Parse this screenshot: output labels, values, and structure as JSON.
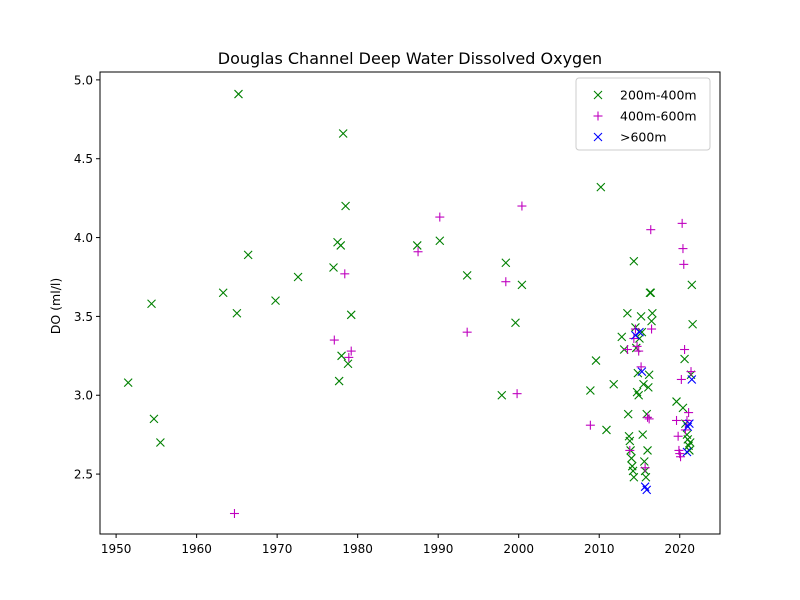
{
  "chart_data": {
    "type": "scatter",
    "title": "Douglas Channel Deep Water Dissolved Oxygen",
    "xlabel": "",
    "ylabel": "DO (ml/l)",
    "xlim": [
      1948,
      2025
    ],
    "ylim": [
      2.12,
      5.05
    ],
    "xticks": [
      "1950",
      "1960",
      "1970",
      "1980",
      "1990",
      "2000",
      "2010",
      "2020"
    ],
    "yticks": [
      "2.5",
      "3.0",
      "3.5",
      "4.0",
      "4.5",
      "5.0"
    ],
    "grid": false,
    "legend_position": "top-right",
    "series": [
      {
        "name": "200m-400m",
        "marker": "x",
        "color": "#008000",
        "points": [
          [
            1951.5,
            3.08
          ],
          [
            1954.4,
            3.58
          ],
          [
            1954.7,
            2.85
          ],
          [
            1955.5,
            2.7
          ],
          [
            1963.3,
            3.65
          ],
          [
            1965.0,
            3.52
          ],
          [
            1965.2,
            4.91
          ],
          [
            1966.4,
            3.89
          ],
          [
            1969.8,
            3.6
          ],
          [
            1972.6,
            3.75
          ],
          [
            1977.0,
            3.81
          ],
          [
            1977.5,
            3.97
          ],
          [
            1977.7,
            3.09
          ],
          [
            1977.9,
            3.95
          ],
          [
            1978.0,
            3.25
          ],
          [
            1978.2,
            4.66
          ],
          [
            1978.5,
            4.2
          ],
          [
            1978.8,
            3.2
          ],
          [
            1979.2,
            3.51
          ],
          [
            1987.4,
            3.95
          ],
          [
            1990.2,
            3.98
          ],
          [
            1993.6,
            3.76
          ],
          [
            1997.9,
            3.0
          ],
          [
            1998.4,
            3.84
          ],
          [
            1999.6,
            3.46
          ],
          [
            2000.4,
            3.7
          ],
          [
            2008.9,
            3.03
          ],
          [
            2009.6,
            3.22
          ],
          [
            2010.2,
            4.32
          ],
          [
            2010.9,
            2.78
          ],
          [
            2011.8,
            3.07
          ],
          [
            2012.8,
            3.37
          ],
          [
            2013.1,
            3.29
          ],
          [
            2013.5,
            3.52
          ],
          [
            2013.6,
            2.88
          ],
          [
            2013.7,
            2.74
          ],
          [
            2013.8,
            2.71
          ],
          [
            2013.9,
            2.65
          ],
          [
            2014.0,
            2.6
          ],
          [
            2014.1,
            2.55
          ],
          [
            2014.2,
            2.52
          ],
          [
            2014.3,
            2.48
          ],
          [
            2014.3,
            3.85
          ],
          [
            2014.5,
            3.43
          ],
          [
            2014.6,
            3.3
          ],
          [
            2014.7,
            3.02
          ],
          [
            2014.8,
            3.14
          ],
          [
            2014.9,
            3.0
          ],
          [
            2015.0,
            3.36
          ],
          [
            2015.2,
            3.5
          ],
          [
            2015.3,
            3.4
          ],
          [
            2015.4,
            2.75
          ],
          [
            2015.5,
            3.07
          ],
          [
            2015.6,
            2.58
          ],
          [
            2015.7,
            2.52
          ],
          [
            2015.8,
            2.48
          ],
          [
            2015.9,
            2.88
          ],
          [
            2016.0,
            2.65
          ],
          [
            2016.1,
            3.05
          ],
          [
            2016.2,
            3.13
          ],
          [
            2016.3,
            3.65
          ],
          [
            2016.4,
            3.65
          ],
          [
            2016.5,
            3.47
          ],
          [
            2016.6,
            3.52
          ],
          [
            2019.6,
            2.96
          ],
          [
            2020.4,
            2.92
          ],
          [
            2020.6,
            3.23
          ],
          [
            2020.7,
            2.82
          ],
          [
            2020.9,
            2.75
          ],
          [
            2021.0,
            2.72
          ],
          [
            2021.1,
            2.68
          ],
          [
            2021.2,
            2.65
          ],
          [
            2021.3,
            2.7
          ],
          [
            2021.4,
            3.13
          ],
          [
            2021.5,
            3.7
          ],
          [
            2021.6,
            3.45
          ]
        ]
      },
      {
        "name": "400m-600m",
        "marker": "+",
        "color": "#bf00bf",
        "points": [
          [
            1964.7,
            2.25
          ],
          [
            1977.1,
            3.35
          ],
          [
            1978.4,
            3.77
          ],
          [
            1978.9,
            3.24
          ],
          [
            1979.2,
            3.28
          ],
          [
            1987.5,
            3.91
          ],
          [
            1990.2,
            4.13
          ],
          [
            1993.6,
            3.4
          ],
          [
            1998.4,
            3.72
          ],
          [
            1999.8,
            3.01
          ],
          [
            2000.4,
            4.2
          ],
          [
            2008.9,
            2.81
          ],
          [
            2013.5,
            3.29
          ],
          [
            2013.8,
            2.65
          ],
          [
            2014.3,
            3.36
          ],
          [
            2014.5,
            3.42
          ],
          [
            2014.7,
            3.31
          ],
          [
            2014.9,
            3.28
          ],
          [
            2015.2,
            3.18
          ],
          [
            2015.7,
            2.54
          ],
          [
            2016.0,
            2.86
          ],
          [
            2016.2,
            2.85
          ],
          [
            2016.4,
            4.05
          ],
          [
            2016.5,
            3.42
          ],
          [
            2019.6,
            2.84
          ],
          [
            2019.8,
            2.74
          ],
          [
            2019.9,
            2.65
          ],
          [
            2020.0,
            2.63
          ],
          [
            2020.1,
            2.61
          ],
          [
            2020.2,
            3.1
          ],
          [
            2020.3,
            4.09
          ],
          [
            2020.4,
            3.93
          ],
          [
            2020.5,
            3.83
          ],
          [
            2020.6,
            3.29
          ],
          [
            2020.7,
            2.78
          ],
          [
            2020.9,
            2.84
          ],
          [
            2021.1,
            2.89
          ],
          [
            2021.4,
            3.15
          ]
        ]
      },
      {
        "name": ">600m",
        "marker": "x",
        "color": "#0000ff",
        "points": [
          [
            2014.5,
            3.38
          ],
          [
            2015.0,
            3.4
          ],
          [
            2015.3,
            3.15
          ],
          [
            2015.7,
            2.42
          ],
          [
            2015.9,
            2.4
          ],
          [
            2020.9,
            2.64
          ],
          [
            2021.0,
            2.8
          ],
          [
            2021.2,
            2.82
          ],
          [
            2021.5,
            3.1
          ]
        ]
      }
    ]
  }
}
